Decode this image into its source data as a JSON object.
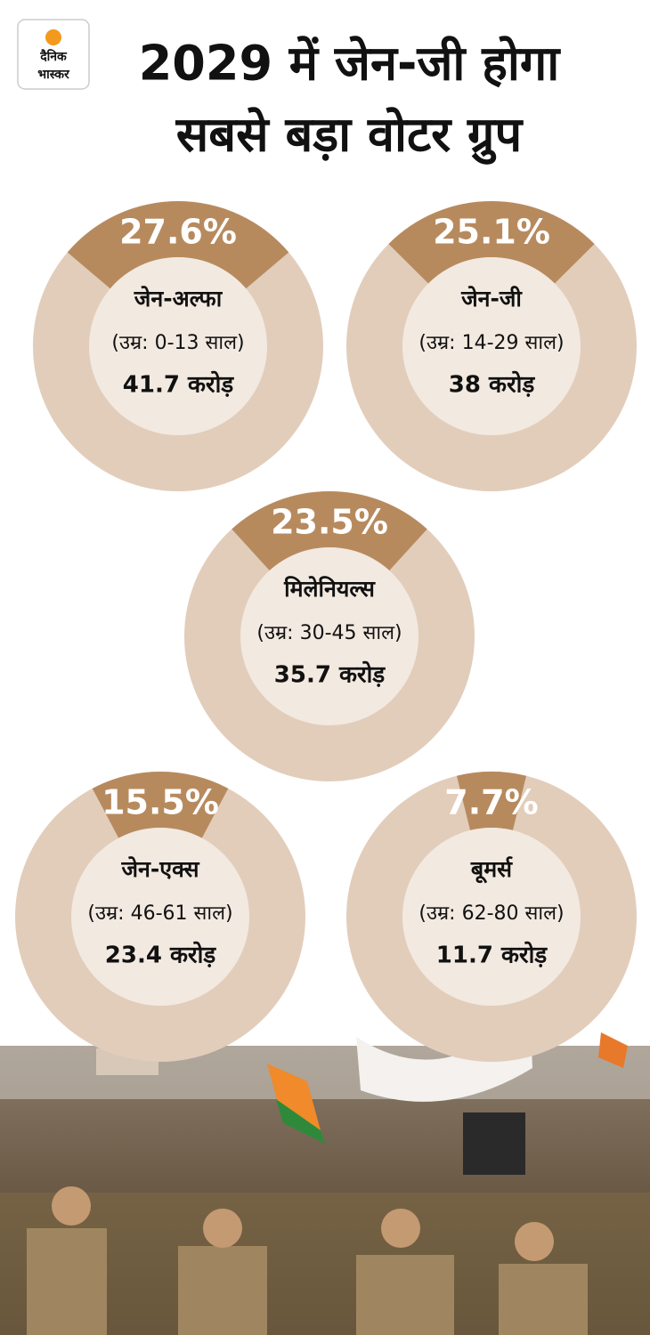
{
  "header": {
    "logo": [
      "दैनिक",
      "भास्कर"
    ],
    "title_lines": [
      "2029 में जेन-जी होगा",
      "सबसे बड़ा वोटर ग्रुप"
    ]
  },
  "chart_data": [
    {
      "type": "pie",
      "values": [
        27.6
      ],
      "value_labels": [
        "27.6%"
      ],
      "title": "जेन-अल्फा",
      "subtitle": "(उम्र: 0-13 साल)",
      "annotation": "41.7 करोड़",
      "color": "#b78a5e"
    },
    {
      "type": "pie",
      "values": [
        25.1
      ],
      "value_labels": [
        "25.1%"
      ],
      "title": "जेन-जी",
      "subtitle": "(उम्र: 14-29 साल)",
      "annotation": "38 करोड़",
      "color": "#b78a5e"
    },
    {
      "type": "pie",
      "values": [
        23.5
      ],
      "value_labels": [
        "23.5%"
      ],
      "title": "मिलेनियल्स",
      "subtitle": "(उम्र: 30-45 साल)",
      "annotation": "35.7 करोड़",
      "color": "#b78a5e"
    },
    {
      "type": "pie",
      "values": [
        15.5
      ],
      "value_labels": [
        "15.5%"
      ],
      "title": "जेन-एक्स",
      "subtitle": "(उम्र: 46-61 साल)",
      "annotation": "23.4 करोड़",
      "color": "#b78a5e"
    },
    {
      "type": "pie",
      "values": [
        7.7
      ],
      "value_labels": [
        "7.7%"
      ],
      "title": "बूमर्स",
      "subtitle": "(उम्र: 62-80 साल)",
      "annotation": "11.7 करोड़",
      "color": "#b78a5e"
    }
  ]
}
